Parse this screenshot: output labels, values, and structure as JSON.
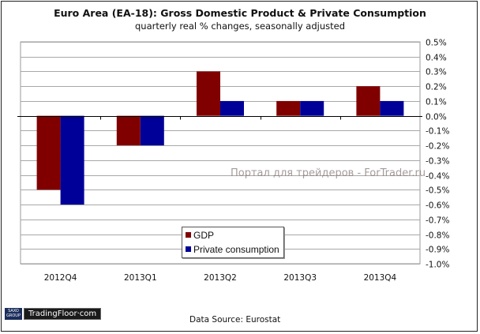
{
  "chart_data": {
    "type": "bar",
    "title": "Euro Area (EA-18): Gross Domestic Product & Private Consumption",
    "subtitle": "quarterly real % changes, seasonally adjusted",
    "categories": [
      "2012Q4",
      "2013Q1",
      "2013Q2",
      "2013Q3",
      "2013Q4"
    ],
    "series": [
      {
        "name": "GDP",
        "color": "#800000",
        "values": [
          -0.5,
          -0.2,
          0.3,
          0.1,
          0.2
        ]
      },
      {
        "name": "Private consumption",
        "color": "#000099",
        "values": [
          -0.6,
          -0.2,
          0.1,
          0.1,
          0.1
        ]
      }
    ],
    "xlabel": "",
    "ylabel": "",
    "ylim": [
      -1.0,
      0.5
    ],
    "yticks": [
      "0.5%",
      "0.4%",
      "0.3%",
      "0.2%",
      "0.1%",
      "0.0%",
      "-0.1%",
      "-0.2%",
      "-0.3%",
      "-0.4%",
      "-0.5%",
      "-0.6%",
      "-0.7%",
      "-0.8%",
      "-0.9%",
      "-1.0%"
    ],
    "ytick_values": [
      0.5,
      0.4,
      0.3,
      0.2,
      0.1,
      0.0,
      -0.1,
      -0.2,
      -0.3,
      -0.4,
      -0.5,
      -0.6,
      -0.7,
      -0.8,
      -0.9,
      -1.0
    ],
    "y_axis_side": "right",
    "grid": true,
    "legend_position": "bottom-center"
  },
  "footer": {
    "source": "Data Source: Eurostat",
    "logo_saxo": "SAXO GROUP",
    "logo_text": "TradingFloor·com"
  },
  "watermark": "Портал для трейдеров - ForTrader.ru"
}
